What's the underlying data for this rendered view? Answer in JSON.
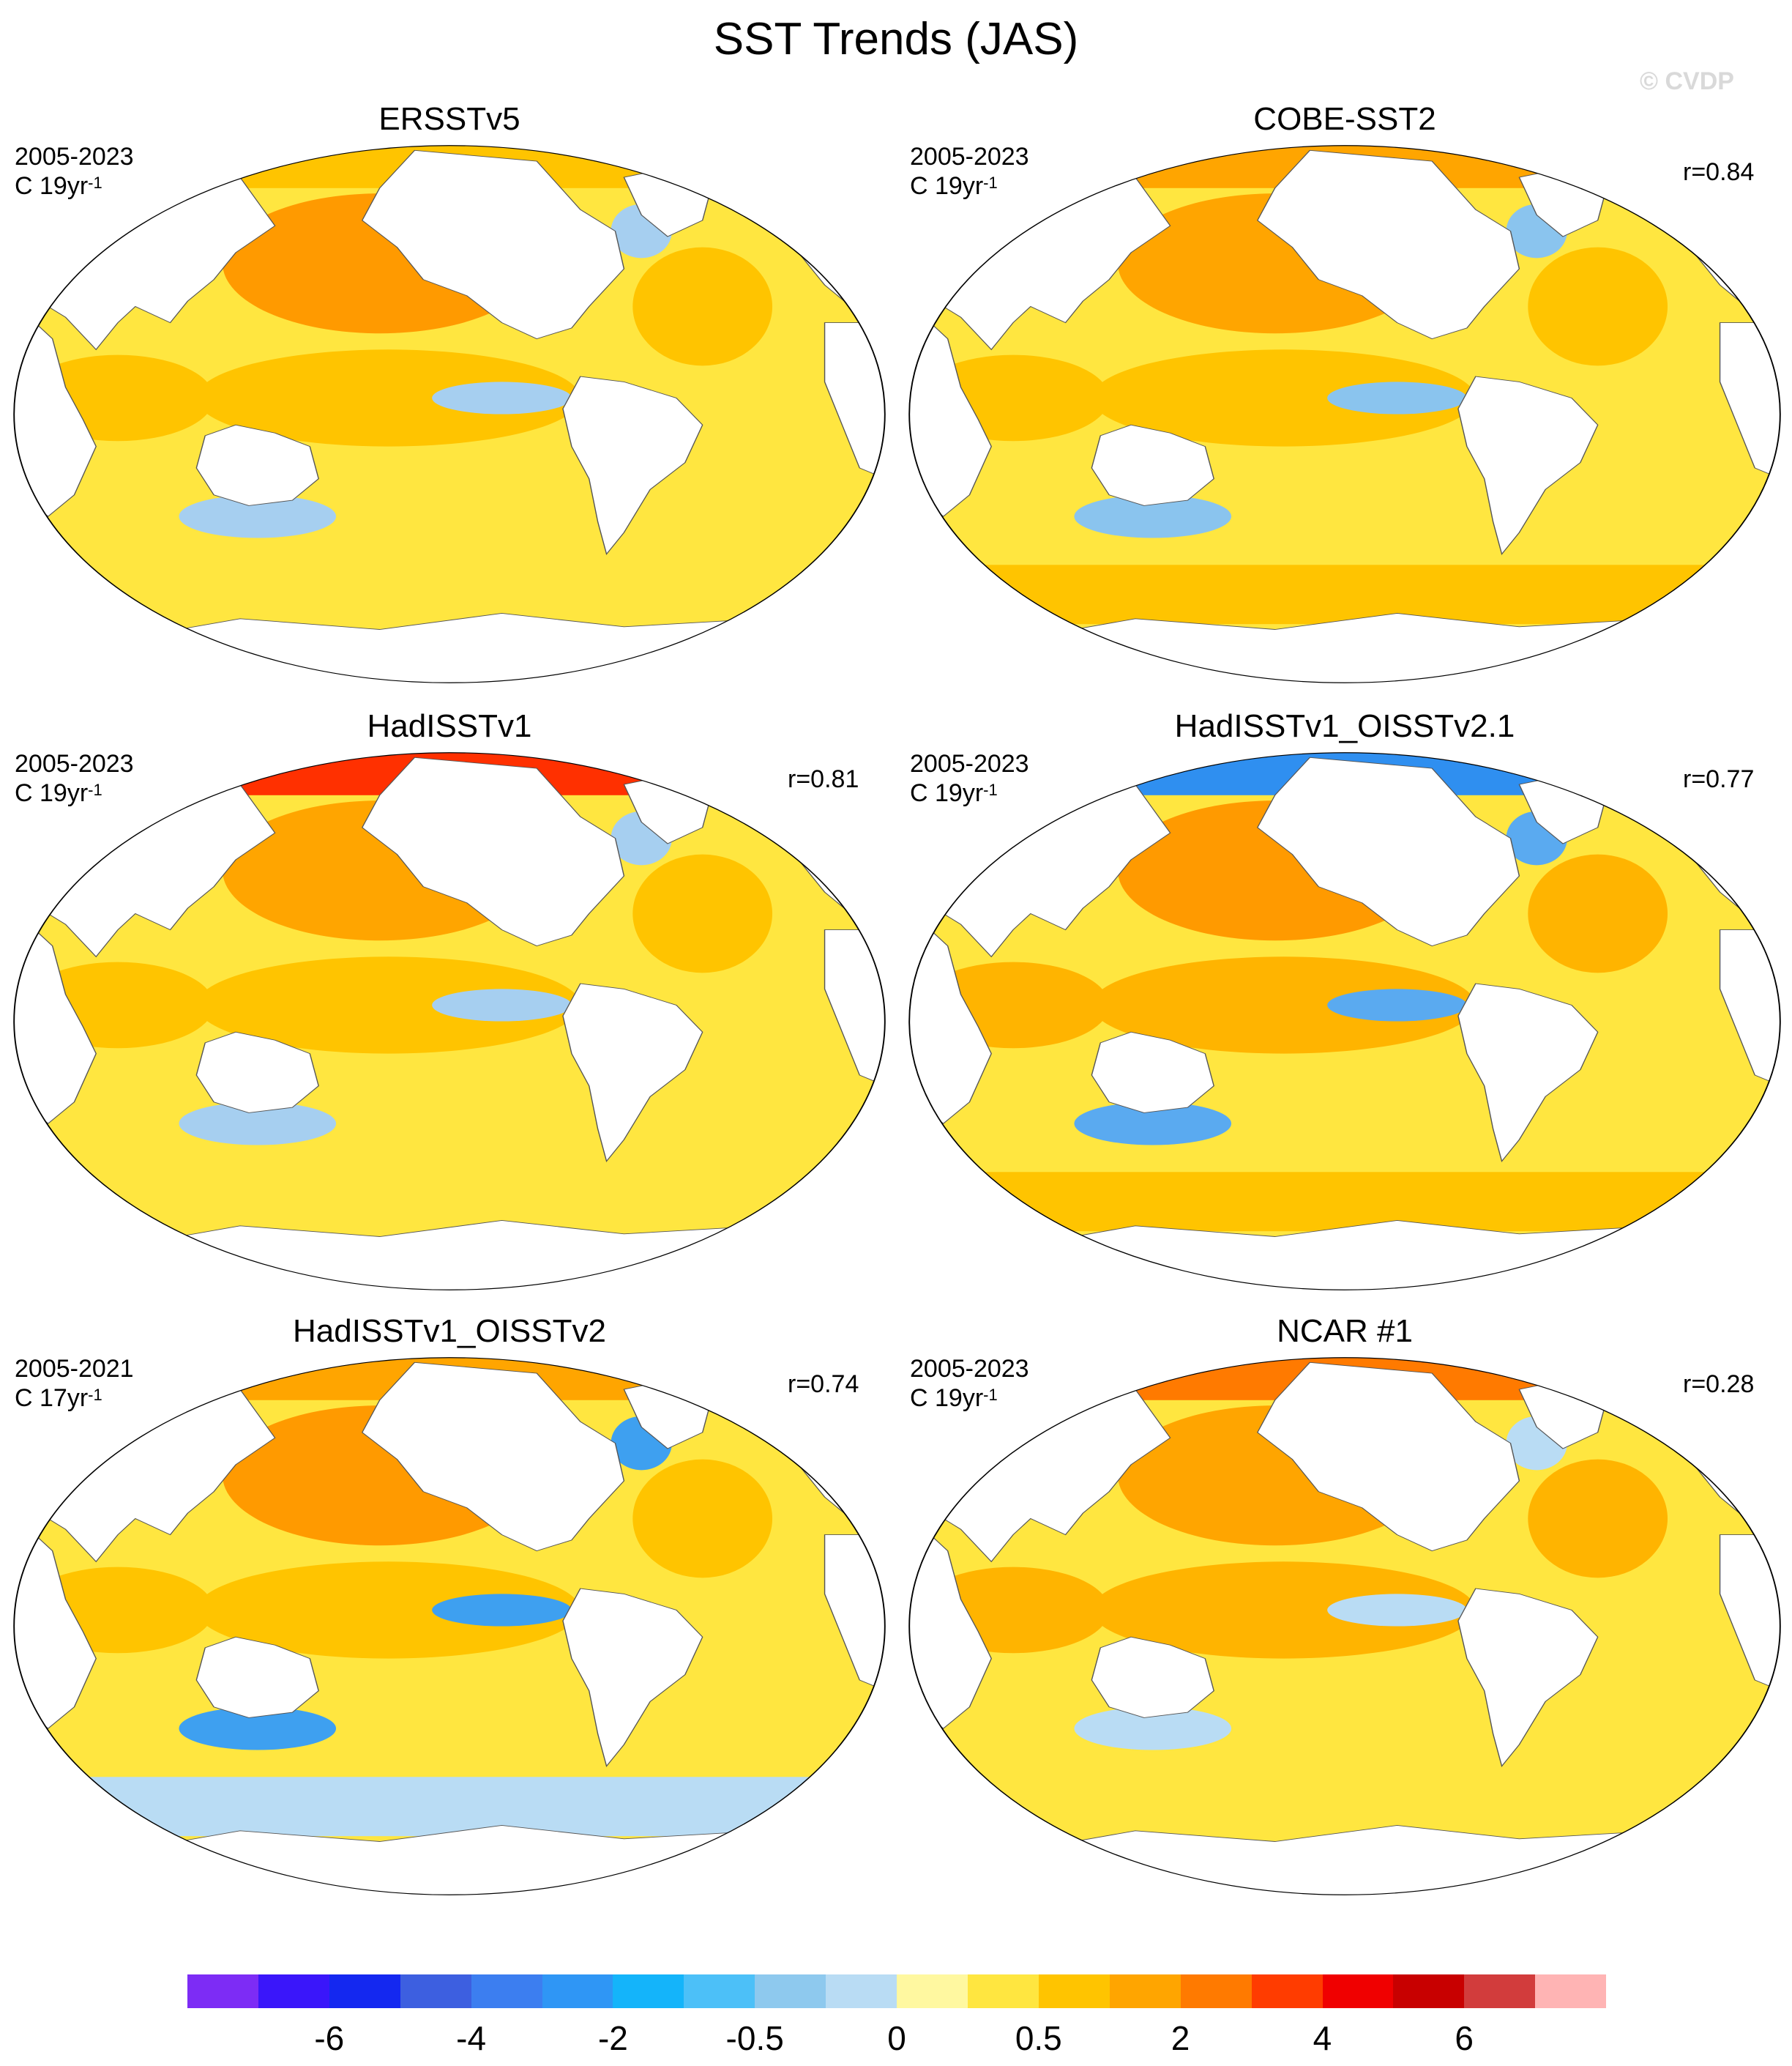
{
  "title": "SST Trends (JAS)",
  "watermark": "© CVDP",
  "panels": [
    {
      "name": "ERSSTv5",
      "period": "2005-2023",
      "units": "C 19yr",
      "units_exp": "-1",
      "corr": null,
      "zones": {
        "north_pacific": "#ff9a00",
        "tropical_pacific": "#ffc400",
        "south_ocean": "#ffe640",
        "arctic": "#ffc400",
        "cool_patch": "#a6cff0"
      }
    },
    {
      "name": "COBE-SST2",
      "period": "2005-2023",
      "units": "C 19yr",
      "units_exp": "-1",
      "corr": "r=0.84",
      "zones": {
        "north_pacific": "#ffa500",
        "tropical_pacific": "#ffc400",
        "south_ocean": "#ffc400",
        "arctic": "#ffa500",
        "cool_patch": "#8ac4ee"
      }
    },
    {
      "name": "HadISSTv1",
      "period": "2005-2023",
      "units": "C 19yr",
      "units_exp": "-1",
      "corr": "r=0.81",
      "zones": {
        "north_pacific": "#ffa500",
        "tropical_pacific": "#ffc400",
        "south_ocean": "#ffe640",
        "arctic": "#ff3000",
        "cool_patch": "#a6cff0"
      }
    },
    {
      "name": "HadISSTv1_OISSTv2.1",
      "period": "2005-2023",
      "units": "C 19yr",
      "units_exp": "-1",
      "corr": "r=0.77",
      "zones": {
        "north_pacific": "#ff9a00",
        "tropical_pacific": "#ffb400",
        "south_ocean": "#ffc400",
        "arctic": "#2f8ff0",
        "cool_patch": "#5aaaf0"
      }
    },
    {
      "name": "HadISSTv1_OISSTv2",
      "period": "2005-2021",
      "units": "C 17yr",
      "units_exp": "-1",
      "corr": "r=0.74",
      "zones": {
        "north_pacific": "#ff9a00",
        "tropical_pacific": "#ffc400",
        "south_ocean": "#b9dcf4",
        "arctic": "#ffa500",
        "cool_patch": "#3ea0f0"
      }
    },
    {
      "name": "NCAR #1",
      "period": "2005-2023",
      "units": "C 19yr",
      "units_exp": "-1",
      "corr": "r=0.28",
      "zones": {
        "north_pacific": "#ffa500",
        "tropical_pacific": "#ffb400",
        "south_ocean": "#ffe640",
        "arctic": "#ff7a00",
        "cool_patch": "#b9dcf4"
      }
    }
  ],
  "colorbar": {
    "colors": [
      "#7d2cf5",
      "#3a16fa",
      "#1428f0",
      "#3d5fe0",
      "#3c7ef0",
      "#2f96f5",
      "#14b4fa",
      "#4cc0f8",
      "#8ec9ee",
      "#b9dcf4",
      "#fff8a0",
      "#ffe640",
      "#ffc400",
      "#ffa500",
      "#ff7a00",
      "#ff3c00",
      "#f00000",
      "#c80000",
      "#d23c3c",
      "#ffb4b4"
    ],
    "ticks": [
      "-6",
      "-4",
      "-2",
      "-0.5",
      "0",
      "0.5",
      "2",
      "4",
      "6"
    ]
  }
}
